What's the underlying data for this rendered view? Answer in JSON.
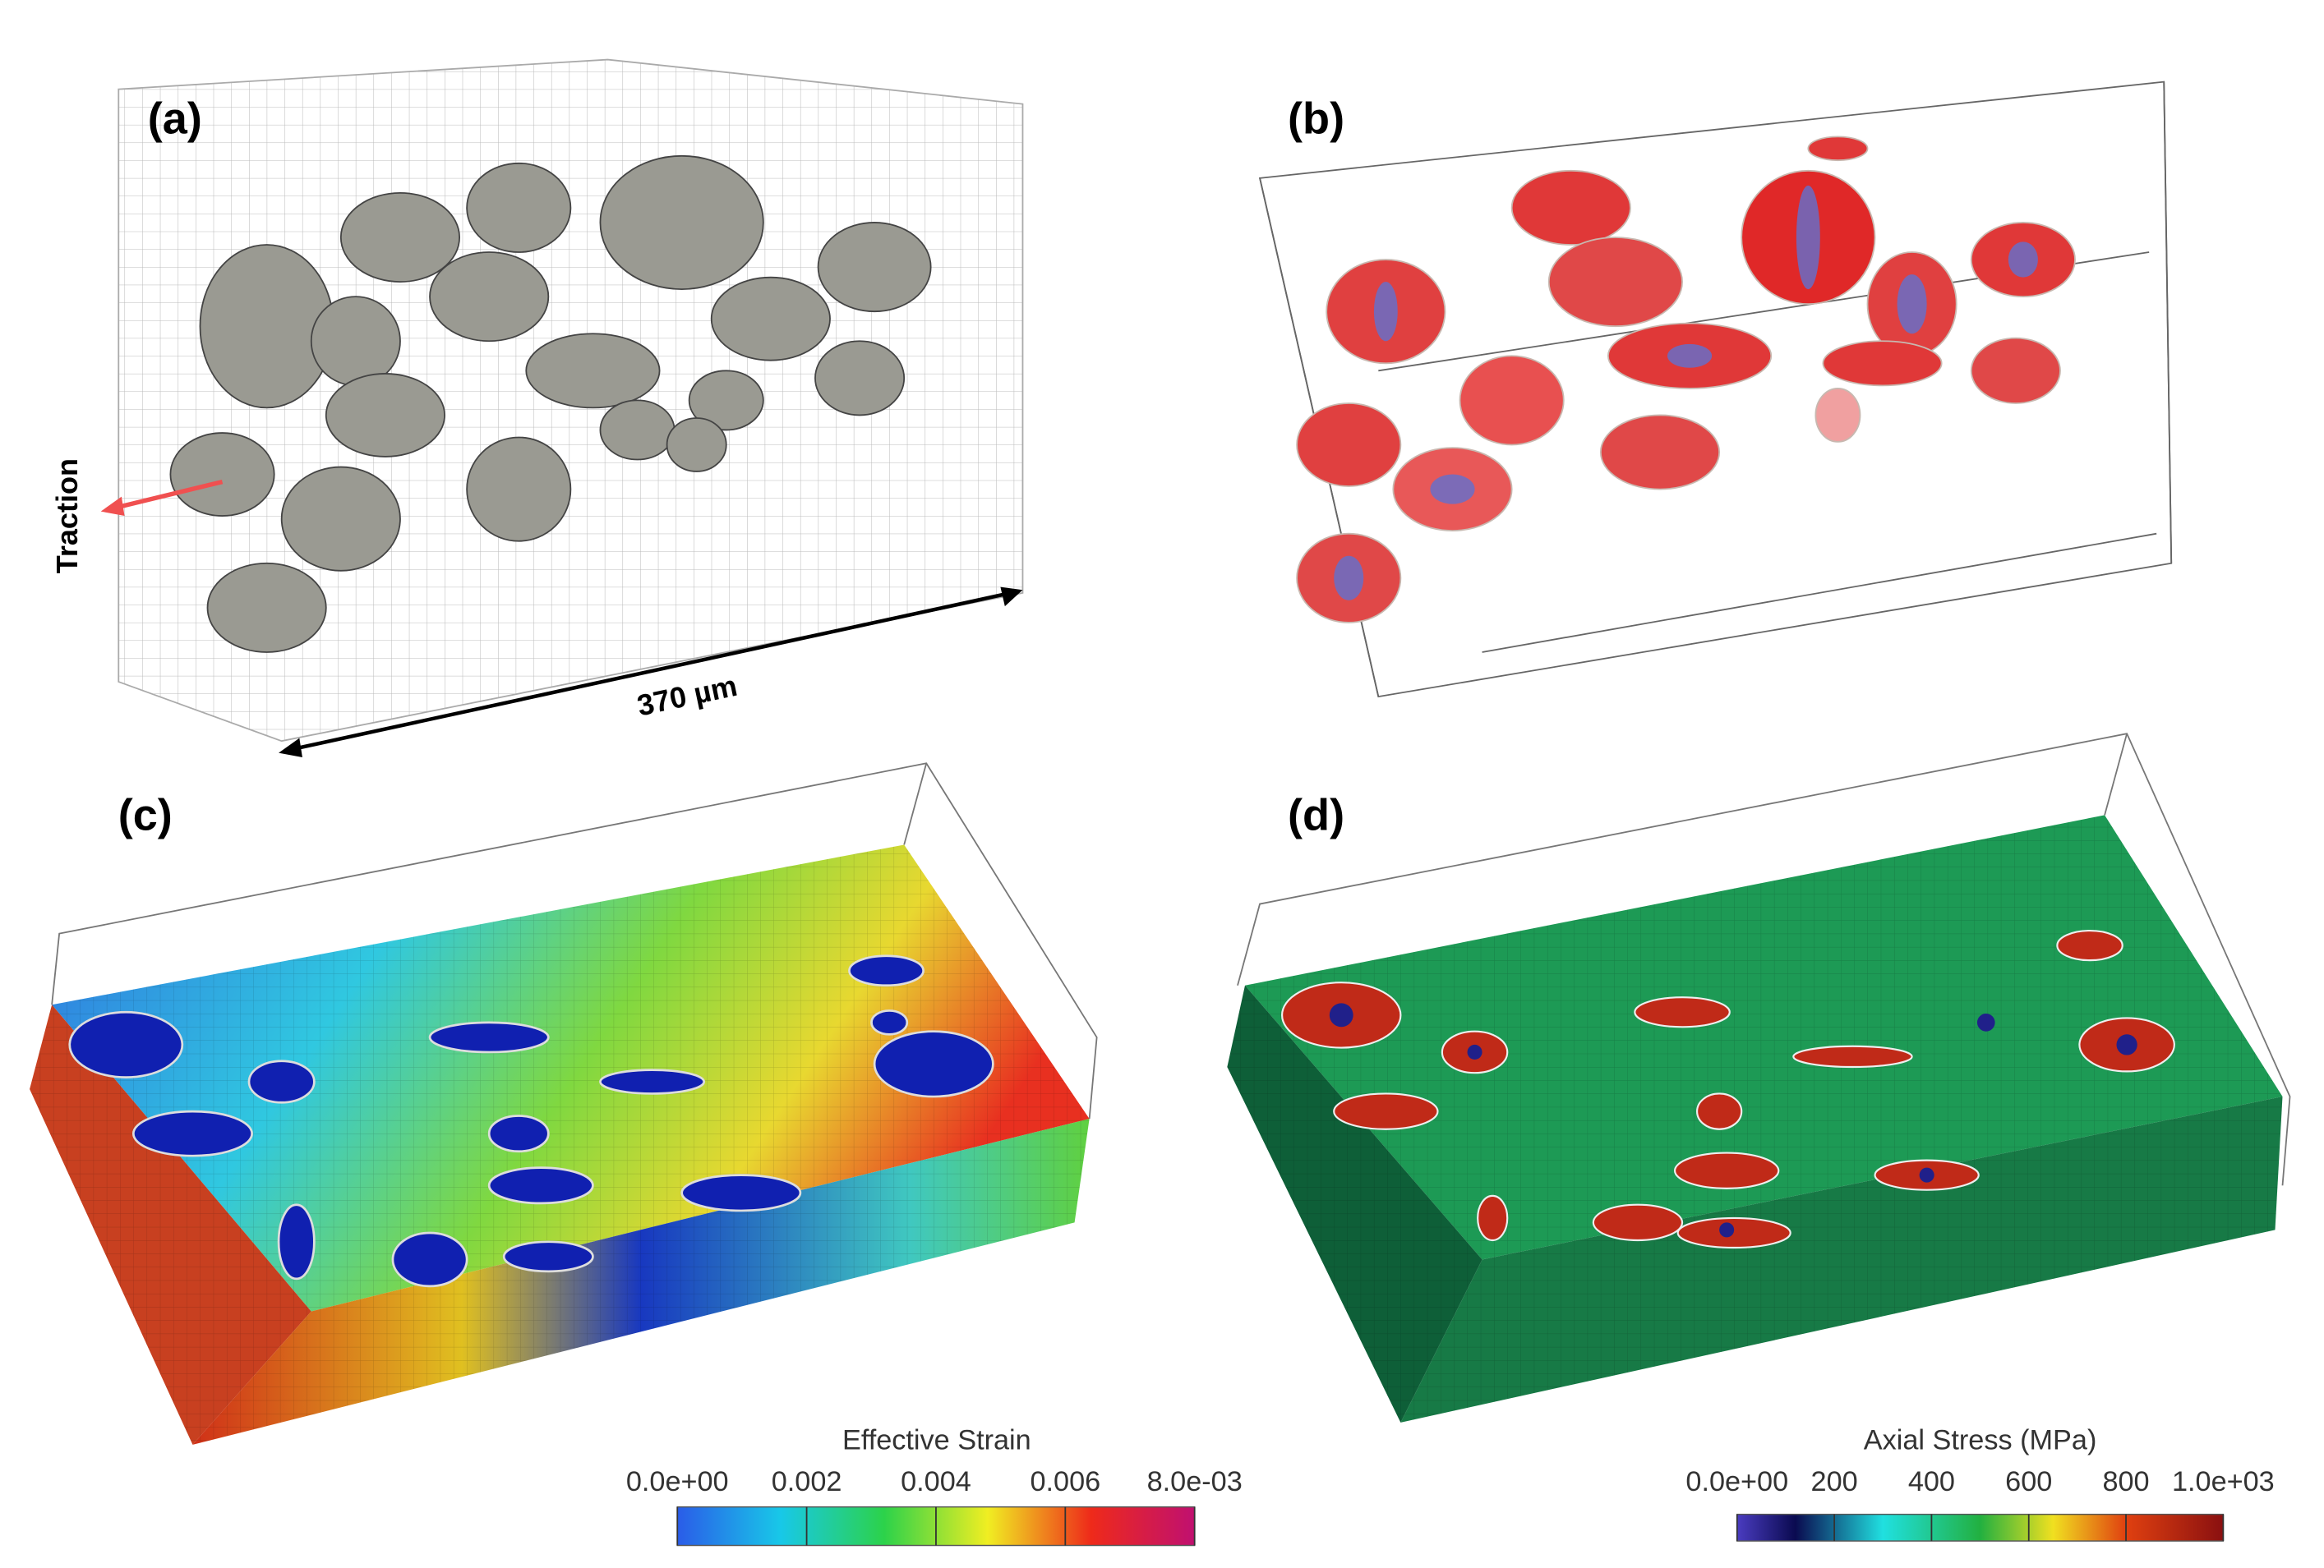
{
  "panels": [
    {
      "label": "(a)",
      "annotations": [
        "Traction",
        "370 µm"
      ]
    },
    {
      "label": "(b)"
    },
    {
      "label": "(c)",
      "colorbar": {
        "title": "Effective Strain",
        "range": [
          0,
          0.008
        ],
        "ticks": [
          {
            "value": 0,
            "label": "0.0e+00"
          },
          0.002,
          0.004,
          0.006,
          {
            "value": 0.008,
            "label": "8.0e-03"
          }
        ]
      }
    },
    {
      "label": "(d)",
      "colorbar": {
        "title": "Axial Stress (MPa)",
        "range": [
          0,
          1000
        ],
        "ticks": [
          {
            "value": 0,
            "label": "0.0e+00"
          },
          200,
          400,
          600,
          800,
          {
            "value": 1000,
            "label": "1.0e+03"
          }
        ]
      }
    }
  ]
}
